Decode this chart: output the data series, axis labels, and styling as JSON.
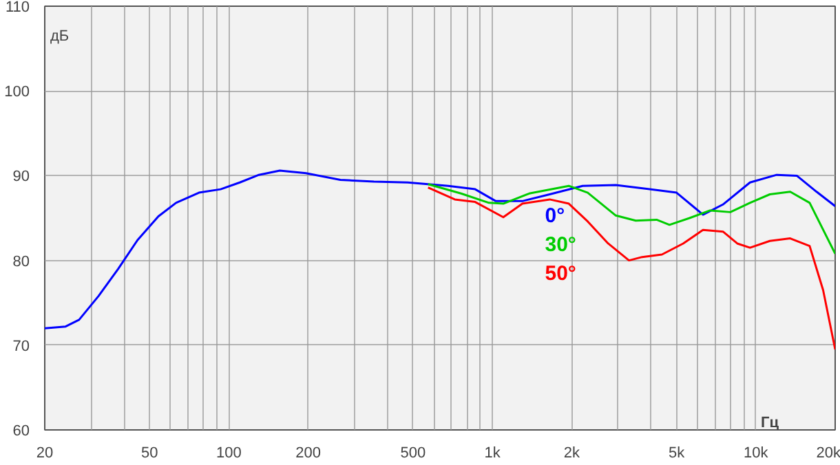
{
  "chart_data": {
    "type": "line",
    "xlabel": "Гц",
    "ylabel": "дБ",
    "log": "x",
    "xlim": [
      20,
      20000
    ],
    "ylim": [
      60,
      110
    ],
    "xticks": [
      20,
      {
        "value": 30,
        "label": null
      },
      {
        "value": 40,
        "label": null
      },
      50,
      {
        "value": 60,
        "label": null
      },
      {
        "value": 70,
        "label": null
      },
      {
        "value": 80,
        "label": null
      },
      {
        "value": 90,
        "label": null
      },
      100,
      200,
      {
        "value": 300,
        "label": null
      },
      {
        "value": 400,
        "label": null
      },
      500,
      {
        "value": 600,
        "label": null
      },
      {
        "value": 700,
        "label": null
      },
      {
        "value": 800,
        "label": null
      },
      {
        "value": 900,
        "label": null
      },
      {
        "value": 1000,
        "label": "1k"
      },
      {
        "value": 2000,
        "label": "2k"
      },
      {
        "value": 3000,
        "label": null
      },
      {
        "value": 4000,
        "label": null
      },
      {
        "value": 5000,
        "label": "5k"
      },
      {
        "value": 6000,
        "label": null
      },
      {
        "value": 7000,
        "label": null
      },
      {
        "value": 8000,
        "label": null
      },
      {
        "value": 9000,
        "label": null
      },
      {
        "value": 10000,
        "label": "10k"
      },
      {
        "value": 20000,
        "label": "20k"
      }
    ],
    "yticks": [
      60,
      70,
      80,
      90,
      100,
      110
    ],
    "grid": true,
    "legend": "center",
    "line_style": "solid",
    "marker": "none",
    "series": [
      {
        "name": "0°",
        "color": "#0000ff",
        "x": [
          20,
          24,
          27,
          32,
          38,
          45,
          54,
          63,
          77,
          93,
          110,
          130,
          156,
          196,
          265,
          355,
          477,
          680,
          860,
          1030,
          1300,
          1650,
          2200,
          2940,
          3950,
          5000,
          6300,
          7500,
          9500,
          12000,
          14300,
          17000,
          20000
        ],
        "values": [
          72.0,
          72.2,
          73,
          75.8,
          79,
          82.4,
          85.2,
          86.8,
          88,
          88.4,
          89.2,
          90.1,
          90.6,
          90.3,
          89.5,
          89.3,
          89.2,
          88.8,
          88.4,
          87,
          87,
          87.8,
          88.8,
          88.9,
          88.4,
          88,
          85.4,
          86.6,
          89.2,
          90.1,
          90,
          88.1,
          86.4
        ]
      },
      {
        "name": "30°",
        "color": "#00cc00",
        "x": [
          570,
          760,
          970,
          1100,
          1380,
          1950,
          2300,
          2940,
          3500,
          4200,
          4700,
          5600,
          6700,
          8000,
          9500,
          11300,
          13500,
          16000,
          20000
        ],
        "values": [
          89.0,
          87.9,
          86.8,
          86.7,
          87.9,
          88.8,
          88,
          85.3,
          84.7,
          84.8,
          84.2,
          85,
          85.9,
          85.7,
          86.8,
          87.8,
          88.1,
          86.8,
          80.8
        ]
      },
      {
        "name": "50°",
        "color": "#ff0000",
        "x": [
          570,
          720,
          860,
          1100,
          1300,
          1650,
          1950,
          2300,
          2750,
          3300,
          3700,
          4400,
          5300,
          6300,
          7500,
          8500,
          9500,
          11300,
          13500,
          16000,
          18000,
          20000
        ],
        "values": [
          88.6,
          87.2,
          86.9,
          85.1,
          86.7,
          87.2,
          86.7,
          84.6,
          82,
          80,
          80.4,
          80.7,
          82,
          83.6,
          83.4,
          82,
          81.5,
          82.3,
          82.6,
          81.7,
          76.5,
          69.5
        ]
      }
    ]
  }
}
